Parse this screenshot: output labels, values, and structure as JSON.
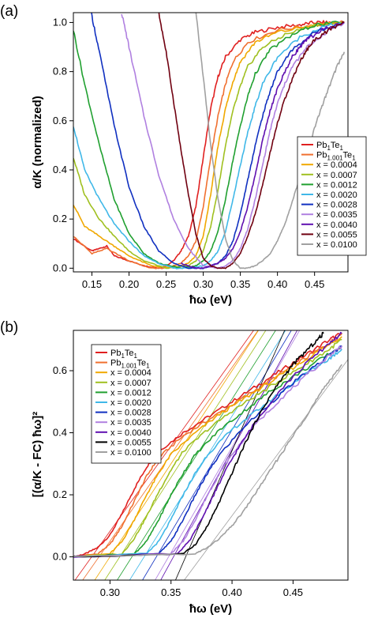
{
  "chart_data": [
    {
      "type": "line",
      "panel_label": "(a)",
      "xlabel": "ħω (eV)",
      "ylabel": "α/K (normalized)",
      "xlim": [
        0.125,
        0.495
      ],
      "ylim": [
        -0.015,
        1.04
      ],
      "x_ticks": [
        "0.15",
        "0.20",
        "0.25",
        "0.30",
        "0.35",
        "0.40",
        "0.45"
      ],
      "y_ticks": [
        "0.0",
        "0.2",
        "0.4",
        "0.6",
        "0.8",
        "1.0"
      ],
      "legend_position": "right",
      "series": [
        {
          "name": "Pb1Te1",
          "color": "#e02020",
          "x": [
            0.125,
            0.15,
            0.16,
            0.17,
            0.18,
            0.2,
            0.22,
            0.24,
            0.25,
            0.26,
            0.27,
            0.28,
            0.29,
            0.3,
            0.31,
            0.32,
            0.33,
            0.35,
            0.37,
            0.4,
            0.43,
            0.45,
            0.47,
            0.49
          ],
          "y": [
            0.12,
            0.07,
            0.08,
            0.09,
            0.05,
            0.03,
            0.01,
            0.0,
            0.01,
            0.03,
            0.07,
            0.13,
            0.25,
            0.45,
            0.65,
            0.78,
            0.86,
            0.93,
            0.96,
            0.98,
            0.99,
            1.0,
            1.0,
            1.0
          ]
        },
        {
          "name": "Pb1.001Te1",
          "color": "#f07030",
          "x": [
            0.125,
            0.15,
            0.17,
            0.2,
            0.23,
            0.25,
            0.27,
            0.28,
            0.29,
            0.3,
            0.31,
            0.32,
            0.33,
            0.34,
            0.36,
            0.4,
            0.45,
            0.49
          ],
          "y": [
            0.13,
            0.06,
            0.08,
            0.03,
            0.0,
            0.0,
            0.02,
            0.05,
            0.11,
            0.25,
            0.45,
            0.62,
            0.75,
            0.84,
            0.92,
            0.97,
            0.99,
            1.0
          ]
        },
        {
          "name": "x = 0.0004",
          "color": "#f0a800",
          "x": [
            0.125,
            0.14,
            0.16,
            0.18,
            0.2,
            0.23,
            0.26,
            0.28,
            0.29,
            0.3,
            0.31,
            0.32,
            0.33,
            0.34,
            0.35,
            0.37,
            0.4,
            0.45,
            0.49
          ],
          "y": [
            0.26,
            0.17,
            0.13,
            0.09,
            0.05,
            0.01,
            0.0,
            0.02,
            0.05,
            0.13,
            0.3,
            0.5,
            0.65,
            0.76,
            0.84,
            0.92,
            0.96,
            0.99,
            1.0
          ]
        },
        {
          "name": "x = 0.0007",
          "color": "#a0c020",
          "x": [
            0.125,
            0.14,
            0.16,
            0.18,
            0.2,
            0.22,
            0.25,
            0.28,
            0.29,
            0.3,
            0.31,
            0.32,
            0.33,
            0.34,
            0.35,
            0.36,
            0.38,
            0.41,
            0.45,
            0.49
          ],
          "y": [
            0.45,
            0.3,
            0.2,
            0.13,
            0.07,
            0.03,
            0.0,
            0.01,
            0.03,
            0.07,
            0.17,
            0.32,
            0.5,
            0.64,
            0.74,
            0.82,
            0.9,
            0.95,
            0.99,
            1.0
          ]
        },
        {
          "name": "x = 0.0012",
          "color": "#20a030",
          "x": [
            0.125,
            0.14,
            0.16,
            0.18,
            0.2,
            0.22,
            0.24,
            0.27,
            0.29,
            0.3,
            0.31,
            0.32,
            0.33,
            0.34,
            0.35,
            0.36,
            0.37,
            0.39,
            0.42,
            0.45,
            0.49
          ],
          "y": [
            0.97,
            0.75,
            0.5,
            0.28,
            0.14,
            0.06,
            0.02,
            0.0,
            0.01,
            0.03,
            0.07,
            0.15,
            0.28,
            0.44,
            0.58,
            0.7,
            0.79,
            0.89,
            0.95,
            0.99,
            1.0
          ]
        },
        {
          "name": "x = 0.0020",
          "color": "#40b8e8",
          "x": [
            0.125,
            0.14,
            0.16,
            0.18,
            0.2,
            0.22,
            0.24,
            0.26,
            0.28,
            0.3,
            0.31,
            0.32,
            0.33,
            0.34,
            0.35,
            0.36,
            0.37,
            0.38,
            0.4,
            0.43,
            0.46,
            0.49
          ],
          "y": [
            0.58,
            0.4,
            0.28,
            0.18,
            0.11,
            0.05,
            0.02,
            0.0,
            0.0,
            0.01,
            0.03,
            0.07,
            0.15,
            0.28,
            0.42,
            0.55,
            0.66,
            0.75,
            0.86,
            0.94,
            0.98,
            1.0
          ]
        },
        {
          "name": "x = 0.0028",
          "color": "#1030c0",
          "x": [
            0.149,
            0.16,
            0.18,
            0.2,
            0.22,
            0.24,
            0.26,
            0.28,
            0.3,
            0.32,
            0.33,
            0.34,
            0.35,
            0.36,
            0.37,
            0.38,
            0.39,
            0.4,
            0.42,
            0.45,
            0.49
          ],
          "y": [
            1.04,
            0.88,
            0.58,
            0.33,
            0.17,
            0.07,
            0.02,
            0.0,
            0.0,
            0.02,
            0.05,
            0.11,
            0.22,
            0.36,
            0.5,
            0.62,
            0.72,
            0.8,
            0.89,
            0.96,
            1.0
          ]
        },
        {
          "name": "x = 0.0035",
          "color": "#b080e0",
          "x": [
            0.19,
            0.2,
            0.22,
            0.24,
            0.26,
            0.28,
            0.3,
            0.32,
            0.33,
            0.34,
            0.35,
            0.36,
            0.37,
            0.38,
            0.39,
            0.4,
            0.41,
            0.42,
            0.44,
            0.47,
            0.49
          ],
          "y": [
            1.04,
            0.9,
            0.62,
            0.38,
            0.2,
            0.08,
            0.01,
            0.0,
            0.01,
            0.03,
            0.08,
            0.16,
            0.28,
            0.42,
            0.56,
            0.67,
            0.75,
            0.82,
            0.9,
            0.97,
            1.0
          ]
        },
        {
          "name": "x = 0.0040",
          "color": "#6010b0",
          "x": [
            0.27,
            0.28,
            0.29,
            0.3,
            0.31,
            0.32,
            0.33,
            0.34,
            0.35,
            0.36,
            0.37,
            0.38,
            0.39,
            0.4,
            0.41,
            0.42,
            0.43,
            0.44,
            0.46,
            0.49
          ],
          "y": [
            0.02,
            0.01,
            0.0,
            0.0,
            0.01,
            0.02,
            0.04,
            0.08,
            0.15,
            0.25,
            0.38,
            0.52,
            0.64,
            0.73,
            0.8,
            0.86,
            0.9,
            0.93,
            0.97,
            1.0
          ]
        },
        {
          "name": "x = 0.0055",
          "color": "#700010",
          "x": [
            0.24,
            0.25,
            0.26,
            0.27,
            0.28,
            0.29,
            0.3,
            0.31,
            0.32,
            0.33,
            0.34,
            0.35,
            0.36,
            0.37,
            0.38,
            0.39,
            0.4,
            0.41,
            0.42,
            0.43,
            0.44,
            0.45,
            0.47,
            0.49
          ],
          "y": [
            1.04,
            0.88,
            0.68,
            0.48,
            0.3,
            0.14,
            0.04,
            0.01,
            0.0,
            0.0,
            0.02,
            0.06,
            0.13,
            0.22,
            0.34,
            0.47,
            0.59,
            0.69,
            0.77,
            0.84,
            0.89,
            0.93,
            0.97,
            1.0
          ]
        },
        {
          "name": "x = 0.0100",
          "color": "#a0a0a0",
          "x": [
            0.29,
            0.3,
            0.31,
            0.32,
            0.33,
            0.34,
            0.35,
            0.36,
            0.37,
            0.38,
            0.39,
            0.4,
            0.41,
            0.42,
            0.43,
            0.44,
            0.45,
            0.46,
            0.47,
            0.48,
            0.49
          ],
          "y": [
            1.04,
            0.78,
            0.5,
            0.28,
            0.12,
            0.03,
            0.0,
            0.0,
            0.01,
            0.03,
            0.06,
            0.11,
            0.18,
            0.27,
            0.37,
            0.47,
            0.57,
            0.66,
            0.74,
            0.82,
            0.88
          ]
        }
      ]
    },
    {
      "type": "line",
      "panel_label": "(b)",
      "xlabel": "ħω (eV)",
      "ylabel": "[(α/K - FC) ħω]²",
      "xlim": [
        0.27,
        0.495
      ],
      "ylim": [
        -0.075,
        0.73
      ],
      "x_ticks": [
        "0.30",
        "0.35",
        "0.40",
        "0.45"
      ],
      "y_ticks": [
        "0.0",
        "0.2",
        "0.4",
        "0.6"
      ],
      "legend_position": "top-left",
      "series": [
        {
          "name": "Pb1Te1",
          "color": "#e02020",
          "x": [
            0.27,
            0.28,
            0.29,
            0.3,
            0.31,
            0.32,
            0.33,
            0.34,
            0.36,
            0.38,
            0.4,
            0.42,
            0.44,
            0.46,
            0.48,
            0.49
          ],
          "y": [
            0.0,
            0.01,
            0.03,
            0.07,
            0.14,
            0.22,
            0.29,
            0.34,
            0.4,
            0.45,
            0.5,
            0.55,
            0.6,
            0.65,
            0.7,
            0.72
          ],
          "fit": {
            "x0": 0.285,
            "slope": 5.5
          }
        },
        {
          "name": "Pb1.001Te1",
          "color": "#f07030",
          "x": [
            0.27,
            0.29,
            0.3,
            0.31,
            0.32,
            0.33,
            0.34,
            0.36,
            0.38,
            0.4,
            0.42,
            0.44,
            0.46,
            0.48,
            0.49
          ],
          "y": [
            0.0,
            0.01,
            0.04,
            0.1,
            0.18,
            0.26,
            0.32,
            0.39,
            0.44,
            0.49,
            0.54,
            0.59,
            0.64,
            0.69,
            0.72
          ],
          "fit": {
            "x0": 0.291,
            "slope": 5.6
          }
        },
        {
          "name": "x = 0.0004",
          "color": "#f0a800",
          "x": [
            0.27,
            0.3,
            0.31,
            0.32,
            0.33,
            0.34,
            0.35,
            0.37,
            0.39,
            0.41,
            0.43,
            0.45,
            0.47,
            0.49
          ],
          "y": [
            0.0,
            0.01,
            0.05,
            0.12,
            0.2,
            0.27,
            0.33,
            0.4,
            0.46,
            0.51,
            0.56,
            0.61,
            0.66,
            0.71
          ],
          "fit": {
            "x0": 0.3,
            "slope": 6.0
          }
        },
        {
          "name": "x = 0.0007",
          "color": "#a0c020",
          "x": [
            0.27,
            0.31,
            0.32,
            0.33,
            0.34,
            0.35,
            0.36,
            0.38,
            0.4,
            0.42,
            0.44,
            0.46,
            0.48,
            0.49
          ],
          "y": [
            0.0,
            0.01,
            0.06,
            0.13,
            0.21,
            0.28,
            0.34,
            0.41,
            0.47,
            0.52,
            0.57,
            0.62,
            0.67,
            0.7
          ],
          "fit": {
            "x0": 0.308,
            "slope": 6.1
          }
        },
        {
          "name": "x = 0.0012",
          "color": "#20a030",
          "x": [
            0.27,
            0.32,
            0.33,
            0.34,
            0.35,
            0.36,
            0.37,
            0.39,
            0.41,
            0.43,
            0.45,
            0.47,
            0.49
          ],
          "y": [
            0.0,
            0.01,
            0.05,
            0.12,
            0.2,
            0.27,
            0.33,
            0.41,
            0.47,
            0.53,
            0.58,
            0.63,
            0.68
          ],
          "fit": {
            "x0": 0.318,
            "slope": 6.2
          }
        },
        {
          "name": "x = 0.0020",
          "color": "#40b8e8",
          "x": [
            0.27,
            0.33,
            0.34,
            0.35,
            0.36,
            0.37,
            0.38,
            0.4,
            0.42,
            0.44,
            0.46,
            0.48,
            0.49
          ],
          "y": [
            0.0,
            0.01,
            0.05,
            0.12,
            0.2,
            0.27,
            0.33,
            0.41,
            0.47,
            0.53,
            0.59,
            0.64,
            0.67
          ],
          "fit": {
            "x0": 0.328,
            "slope": 6.3
          }
        },
        {
          "name": "x = 0.0028",
          "color": "#1030c0",
          "x": [
            0.27,
            0.34,
            0.35,
            0.36,
            0.37,
            0.38,
            0.39,
            0.41,
            0.43,
            0.45,
            0.47,
            0.49
          ],
          "y": [
            0.0,
            0.01,
            0.05,
            0.12,
            0.2,
            0.27,
            0.33,
            0.42,
            0.49,
            0.56,
            0.62,
            0.68
          ],
          "fit": {
            "x0": 0.338,
            "slope": 6.6
          }
        },
        {
          "name": "x = 0.0035",
          "color": "#b080e0",
          "x": [
            0.27,
            0.35,
            0.36,
            0.37,
            0.38,
            0.39,
            0.4,
            0.42,
            0.44,
            0.46,
            0.48,
            0.49
          ],
          "y": [
            0.0,
            0.01,
            0.05,
            0.12,
            0.2,
            0.27,
            0.33,
            0.43,
            0.51,
            0.58,
            0.65,
            0.68
          ],
          "fit": {
            "x0": 0.348,
            "slope": 6.8
          }
        },
        {
          "name": "x = 0.0040",
          "color": "#6010b0",
          "x": [
            0.27,
            0.355,
            0.365,
            0.375,
            0.385,
            0.395,
            0.405,
            0.42,
            0.44,
            0.46,
            0.48,
            0.49
          ],
          "y": [
            0.0,
            0.01,
            0.05,
            0.12,
            0.2,
            0.28,
            0.35,
            0.44,
            0.54,
            0.62,
            0.69,
            0.72
          ],
          "fit": {
            "x0": 0.352,
            "slope": 7.2
          }
        },
        {
          "name": "x = 0.0055",
          "color": "#000000",
          "x": [
            0.27,
            0.36,
            0.37,
            0.38,
            0.39,
            0.4,
            0.41,
            0.42,
            0.43,
            0.44,
            0.45,
            0.46,
            0.47,
            0.475
          ],
          "y": [
            0.0,
            0.01,
            0.04,
            0.1,
            0.18,
            0.27,
            0.36,
            0.44,
            0.51,
            0.57,
            0.62,
            0.66,
            0.7,
            0.72
          ],
          "fit": {
            "x0": 0.362,
            "slope": 9.0
          }
        },
        {
          "name": "x = 0.0100",
          "color": "#a0a0a0",
          "x": [
            0.27,
            0.37,
            0.38,
            0.39,
            0.4,
            0.41,
            0.42,
            0.43,
            0.44,
            0.45,
            0.46,
            0.47,
            0.48,
            0.49
          ],
          "y": [
            0.0,
            0.01,
            0.03,
            0.06,
            0.1,
            0.15,
            0.21,
            0.27,
            0.33,
            0.39,
            0.45,
            0.51,
            0.57,
            0.62
          ],
          "fit": {
            "x0": 0.375,
            "slope": 5.3
          }
        }
      ]
    }
  ]
}
